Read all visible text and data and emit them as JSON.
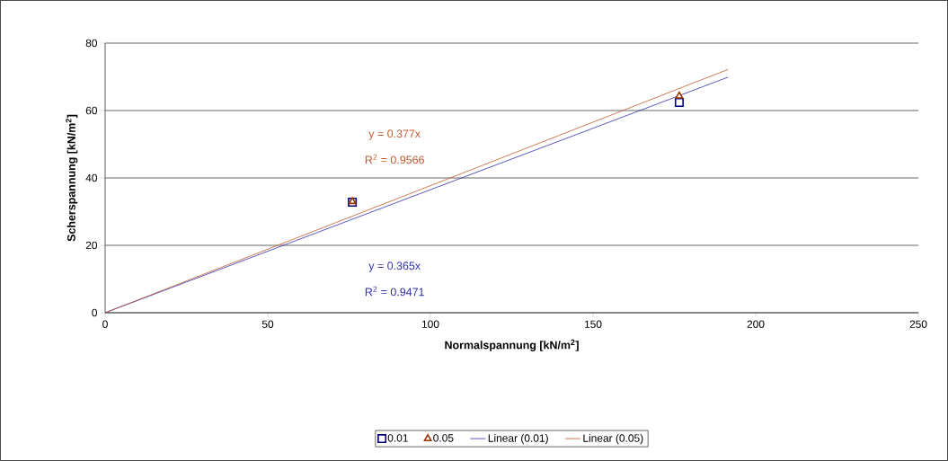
{
  "chart_data": {
    "type": "scatter",
    "xlabel": "Normalspannung [kN/m$^{2}$]",
    "ylabel": "Scherspannung [kN/m$^{2}$]",
    "xlim": [
      0,
      250
    ],
    "xticks": [
      0,
      50,
      100,
      150,
      200,
      250
    ],
    "ylim": [
      0,
      80
    ],
    "yticks": [
      0,
      20,
      40,
      60,
      80
    ],
    "grid": "y",
    "legend": "bottom",
    "series": [
      {
        "name": "0.01",
        "marker": "square",
        "color": "#000080",
        "x": [
          76,
          176.5
        ],
        "values": [
          32.8,
          62.4
        ]
      },
      {
        "name": "0.05",
        "marker": "triangle",
        "color": "#993300",
        "x": [
          76,
          176.5
        ],
        "values": [
          33,
          64.3
        ]
      },
      {
        "name": "Linear (0.01)",
        "type": "line",
        "color": "#3030b0",
        "x": [
          0,
          191.5
        ],
        "values": [
          0,
          69.9
        ]
      },
      {
        "name": "Linear (0.05)",
        "type": "line",
        "color": "#c05a30",
        "x": [
          0,
          191.5
        ],
        "values": [
          0,
          72.2
        ]
      }
    ],
    "annotations": [
      "y = 0.377x",
      "R$^{2}$ = 0.9566",
      "y = 0.365x",
      "R$^{2}$ = 0.9471"
    ]
  }
}
